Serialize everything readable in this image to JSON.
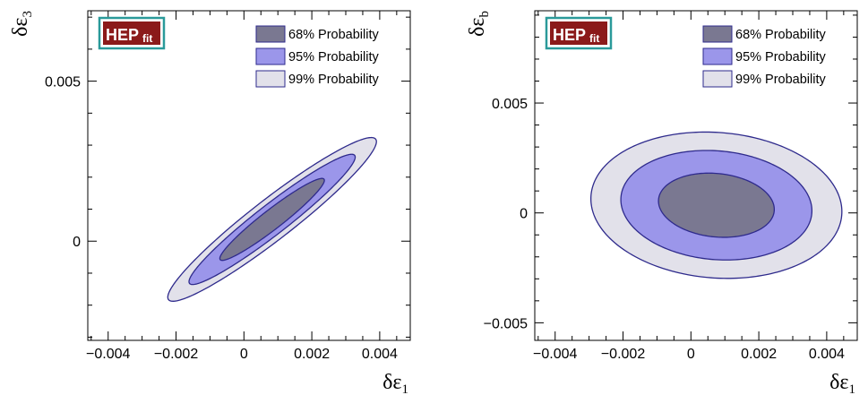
{
  "logo": {
    "main": "HEP",
    "sub": "fit",
    "bg_color": "#8b1a1a",
    "border_color": "#2a9a9a"
  },
  "legend": [
    {
      "label": "68% Probability",
      "color": "#7a7891"
    },
    {
      "label": "95% Probability",
      "color": "#9b96ea"
    },
    {
      "label": "99% Probability",
      "color": "#e2e1ea"
    }
  ],
  "contour_stroke": "#2e2a8c",
  "chart_data": [
    {
      "type": "contour",
      "xlabel": {
        "base": "δε",
        "sub": "1"
      },
      "ylabel": {
        "base": "δε",
        "sub": "3"
      },
      "xlim": [
        -0.0046,
        0.0049
      ],
      "ylim": [
        -0.0031,
        0.0072
      ],
      "xticks": [
        -0.004,
        -0.002,
        0,
        0.002,
        0.004
      ],
      "xtick_labels": [
        "−0.004",
        "−0.002",
        "0",
        "0.002",
        "0.004"
      ],
      "yticks": [
        0,
        0.005
      ],
      "ytick_labels": [
        "0",
        "0.005"
      ],
      "legend_position": "top-right",
      "regions": [
        {
          "level": "99% Probability",
          "center": [
            0.00083,
            0.00068
          ],
          "semi_major": 0.00395,
          "semi_minor": 0.00062,
          "angle_deg": 39.5
        },
        {
          "level": "95% Probability",
          "center": [
            0.00083,
            0.00068
          ],
          "semi_major": 0.00315,
          "semi_minor": 0.00046,
          "angle_deg": 39.5
        },
        {
          "level": "68% Probability",
          "center": [
            0.00083,
            0.00068
          ],
          "semi_major": 0.00198,
          "semi_minor": 0.0003,
          "angle_deg": 39.5
        }
      ]
    },
    {
      "type": "contour",
      "xlabel": {
        "base": "δε",
        "sub": "1"
      },
      "ylabel": {
        "base": "δε",
        "sub": "b"
      },
      "xlim": [
        -0.0046,
        0.0049
      ],
      "ylim": [
        -0.0058,
        0.0092
      ],
      "xticks": [
        -0.004,
        -0.002,
        0,
        0.002,
        0.004
      ],
      "xtick_labels": [
        "−0.004",
        "−0.002",
        "0",
        "0.002",
        "0.004"
      ],
      "yticks": [
        -0.005,
        0,
        0.005
      ],
      "ytick_labels": [
        "−0.005",
        "0",
        "0.005"
      ],
      "legend_position": "top-right",
      "regions": [
        {
          "level": "99% Probability",
          "center": [
            0.00075,
            0.00035
          ],
          "semi_major": 0.00375,
          "semi_minor": 0.00327,
          "angle_deg": -20
        },
        {
          "level": "95% Probability",
          "center": [
            0.00075,
            0.00035
          ],
          "semi_major": 0.00286,
          "semi_minor": 0.00244,
          "angle_deg": -20
        },
        {
          "level": "68% Probability",
          "center": [
            0.00075,
            0.00035
          ],
          "semi_major": 0.00174,
          "semi_minor": 0.00142,
          "angle_deg": -20
        }
      ]
    }
  ]
}
